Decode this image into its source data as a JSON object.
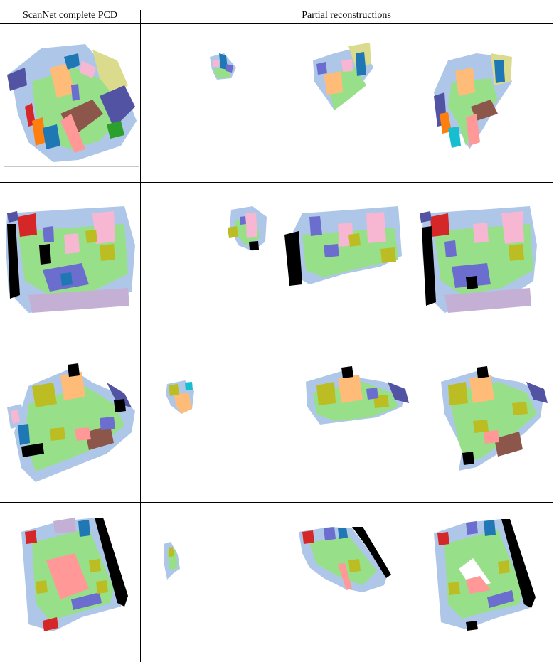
{
  "table": {
    "header_left": "ScanNet complete PCD",
    "header_right": "Partial reconstructions"
  },
  "colors": {
    "wall": "#aec7e8",
    "floor": "#98df8a",
    "furniture_orange": "#ffbb78",
    "pink": "#f7b6d2",
    "blue": "#1f77b4",
    "purple": "#5254a3",
    "brown": "#8c564b",
    "olive": "#bcbd22",
    "khaki": "#dbdb8d",
    "slate": "#6b6ecf",
    "red": "#d62728",
    "salmon": "#ff9896",
    "lavender": "#c5b0d5",
    "black": "#000000",
    "green": "#2ca02c",
    "orange": "#ff7f0e",
    "cyan": "#17becf"
  }
}
